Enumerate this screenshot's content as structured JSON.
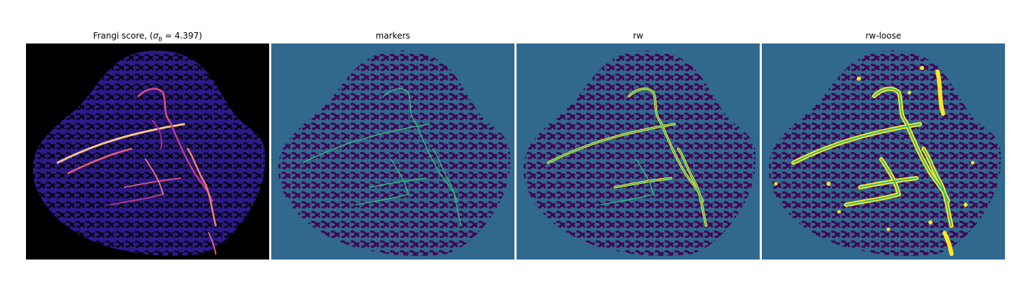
{
  "figure": {
    "panels": [
      {
        "id": "frangi",
        "title_prefix": "Frangi score, (",
        "title_symbol": "σ",
        "title_sub": "B",
        "title_suffix": " = 4.397)",
        "colormap": "magma"
      },
      {
        "id": "markers",
        "title": "markers",
        "colormap": "viridis"
      },
      {
        "id": "rw",
        "title": "rw",
        "colormap": "viridis"
      },
      {
        "id": "rw-loose",
        "title": "rw-loose",
        "colormap": "viridis"
      }
    ]
  },
  "colors": {
    "frangi_bg": "#000000",
    "frangi_tissue": "#2d1a8a",
    "frangi_hot": "#f7c48b",
    "frangi_mid": "#c13c8c",
    "viridis_bg": "#31688e",
    "viridis_dark": "#440154",
    "viridis_mid": "#35b779",
    "viridis_yellow": "#fde725"
  }
}
